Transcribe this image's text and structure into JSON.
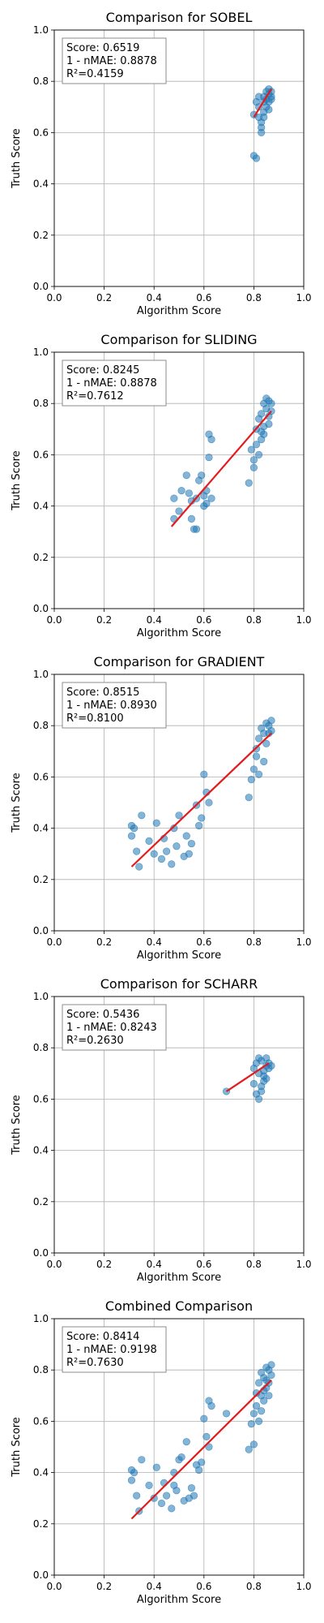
{
  "colors": {
    "point": "#1f77b4",
    "fit_line": "#e41a1c",
    "grid": "#b0b0b0"
  },
  "chart_data": [
    {
      "type": "scatter",
      "title": "Comparison for SOBEL",
      "xlabel": "Algorithm Score",
      "ylabel": "Truth Score",
      "xlim": [
        0,
        1
      ],
      "ylim": [
        0,
        1
      ],
      "xticks": [
        "0.0",
        "0.2",
        "0.4",
        "0.6",
        "0.8",
        "1.0"
      ],
      "yticks": [
        "0.0",
        "0.2",
        "0.4",
        "0.6",
        "0.8",
        "1.0"
      ],
      "grid": true,
      "stats_box": [
        "Score: 0.6519",
        "1 - nMAE: 0.8878",
        "R²=0.4159"
      ],
      "fit_line": [
        [
          0.8,
          0.66
        ],
        [
          0.87,
          0.77
        ]
      ],
      "points": [
        [
          0.8,
          0.51
        ],
        [
          0.81,
          0.5
        ],
        [
          0.8,
          0.67
        ],
        [
          0.81,
          0.72
        ],
        [
          0.82,
          0.7
        ],
        [
          0.82,
          0.66
        ],
        [
          0.83,
          0.62
        ],
        [
          0.83,
          0.6
        ],
        [
          0.84,
          0.72
        ],
        [
          0.84,
          0.74
        ],
        [
          0.85,
          0.76
        ],
        [
          0.85,
          0.73
        ],
        [
          0.86,
          0.75
        ],
        [
          0.86,
          0.77
        ],
        [
          0.87,
          0.74
        ],
        [
          0.87,
          0.76
        ],
        [
          0.84,
          0.68
        ],
        [
          0.83,
          0.64
        ],
        [
          0.82,
          0.74
        ],
        [
          0.86,
          0.72
        ],
        [
          0.85,
          0.7
        ],
        [
          0.84,
          0.66
        ],
        [
          0.87,
          0.73
        ],
        [
          0.86,
          0.69
        ]
      ]
    },
    {
      "type": "scatter",
      "title": "Comparison for SLIDING",
      "xlabel": "Algorithm Score",
      "ylabel": "Truth Score",
      "xlim": [
        0,
        1
      ],
      "ylim": [
        0,
        1
      ],
      "xticks": [
        "0.0",
        "0.2",
        "0.4",
        "0.6",
        "0.8",
        "1.0"
      ],
      "yticks": [
        "0.0",
        "0.2",
        "0.4",
        "0.6",
        "0.8",
        "1.0"
      ],
      "grid": true,
      "stats_box": [
        "Score: 0.8245",
        "1 - nMAE: 0.8878",
        "R²=0.7612"
      ],
      "fit_line": [
        [
          0.47,
          0.32
        ],
        [
          0.87,
          0.77
        ]
      ],
      "points": [
        [
          0.48,
          0.35
        ],
        [
          0.48,
          0.43
        ],
        [
          0.5,
          0.38
        ],
        [
          0.51,
          0.46
        ],
        [
          0.53,
          0.52
        ],
        [
          0.54,
          0.45
        ],
        [
          0.55,
          0.35
        ],
        [
          0.55,
          0.42
        ],
        [
          0.56,
          0.31
        ],
        [
          0.57,
          0.31
        ],
        [
          0.57,
          0.43
        ],
        [
          0.58,
          0.5
        ],
        [
          0.59,
          0.52
        ],
        [
          0.6,
          0.44
        ],
        [
          0.6,
          0.4
        ],
        [
          0.61,
          0.46
        ],
        [
          0.62,
          0.68
        ],
        [
          0.63,
          0.66
        ],
        [
          0.62,
          0.59
        ],
        [
          0.61,
          0.41
        ],
        [
          0.63,
          0.43
        ],
        [
          0.78,
          0.49
        ],
        [
          0.79,
          0.62
        ],
        [
          0.8,
          0.55
        ],
        [
          0.8,
          0.58
        ],
        [
          0.81,
          0.64
        ],
        [
          0.81,
          0.7
        ],
        [
          0.82,
          0.74
        ],
        [
          0.82,
          0.6
        ],
        [
          0.83,
          0.76
        ],
        [
          0.83,
          0.66
        ],
        [
          0.84,
          0.8
        ],
        [
          0.84,
          0.71
        ],
        [
          0.85,
          0.78
        ],
        [
          0.85,
          0.82
        ],
        [
          0.86,
          0.81
        ],
        [
          0.86,
          0.75
        ],
        [
          0.87,
          0.8
        ],
        [
          0.87,
          0.77
        ],
        [
          0.84,
          0.68
        ],
        [
          0.86,
          0.72
        ],
        [
          0.83,
          0.69
        ]
      ]
    },
    {
      "type": "scatter",
      "title": "Comparison for GRADIENT",
      "xlabel": "Algorithm Score",
      "ylabel": "Truth Score",
      "xlim": [
        0,
        1
      ],
      "ylim": [
        0,
        1
      ],
      "xticks": [
        "0.0",
        "0.2",
        "0.4",
        "0.6",
        "0.8",
        "1.0"
      ],
      "yticks": [
        "0.0",
        "0.2",
        "0.4",
        "0.6",
        "0.8",
        "1.0"
      ],
      "grid": true,
      "stats_box": [
        "Score: 0.8515",
        "1 - nMAE: 0.8930",
        "R²=0.8100"
      ],
      "fit_line": [
        [
          0.31,
          0.25
        ],
        [
          0.87,
          0.77
        ]
      ],
      "points": [
        [
          0.31,
          0.41
        ],
        [
          0.31,
          0.37
        ],
        [
          0.32,
          0.4
        ],
        [
          0.33,
          0.31
        ],
        [
          0.34,
          0.25
        ],
        [
          0.35,
          0.45
        ],
        [
          0.38,
          0.35
        ],
        [
          0.4,
          0.3
        ],
        [
          0.41,
          0.42
        ],
        [
          0.43,
          0.28
        ],
        [
          0.44,
          0.36
        ],
        [
          0.45,
          0.31
        ],
        [
          0.47,
          0.26
        ],
        [
          0.48,
          0.4
        ],
        [
          0.49,
          0.33
        ],
        [
          0.5,
          0.45
        ],
        [
          0.52,
          0.29
        ],
        [
          0.53,
          0.37
        ],
        [
          0.54,
          0.3
        ],
        [
          0.55,
          0.34
        ],
        [
          0.57,
          0.49
        ],
        [
          0.58,
          0.41
        ],
        [
          0.59,
          0.44
        ],
        [
          0.6,
          0.61
        ],
        [
          0.61,
          0.54
        ],
        [
          0.62,
          0.5
        ],
        [
          0.78,
          0.52
        ],
        [
          0.79,
          0.59
        ],
        [
          0.8,
          0.63
        ],
        [
          0.81,
          0.71
        ],
        [
          0.81,
          0.68
        ],
        [
          0.82,
          0.75
        ],
        [
          0.82,
          0.61
        ],
        [
          0.83,
          0.79
        ],
        [
          0.84,
          0.77
        ],
        [
          0.84,
          0.66
        ],
        [
          0.85,
          0.81
        ],
        [
          0.85,
          0.73
        ],
        [
          0.86,
          0.8
        ],
        [
          0.86,
          0.77
        ],
        [
          0.87,
          0.78
        ],
        [
          0.87,
          0.82
        ]
      ]
    },
    {
      "type": "scatter",
      "title": "Comparison for SCHARR",
      "xlabel": "Algorithm Score",
      "ylabel": "Truth Score",
      "xlim": [
        0,
        1
      ],
      "ylim": [
        0,
        1
      ],
      "xticks": [
        "0.0",
        "0.2",
        "0.4",
        "0.6",
        "0.8",
        "1.0"
      ],
      "yticks": [
        "0.0",
        "0.2",
        "0.4",
        "0.6",
        "0.8",
        "1.0"
      ],
      "grid": true,
      "stats_box": [
        "Score: 0.5436",
        "1 - nMAE: 0.8243",
        "R²=0.2630"
      ],
      "fit_line": [
        [
          0.69,
          0.63
        ],
        [
          0.86,
          0.74
        ]
      ],
      "points": [
        [
          0.69,
          0.63
        ],
        [
          0.8,
          0.66
        ],
        [
          0.8,
          0.72
        ],
        [
          0.81,
          0.74
        ],
        [
          0.81,
          0.62
        ],
        [
          0.82,
          0.7
        ],
        [
          0.82,
          0.6
        ],
        [
          0.83,
          0.65
        ],
        [
          0.83,
          0.75
        ],
        [
          0.84,
          0.71
        ],
        [
          0.84,
          0.67
        ],
        [
          0.85,
          0.73
        ],
        [
          0.85,
          0.76
        ],
        [
          0.86,
          0.72
        ],
        [
          0.86,
          0.74
        ],
        [
          0.87,
          0.73
        ],
        [
          0.84,
          0.69
        ],
        [
          0.83,
          0.63
        ],
        [
          0.82,
          0.76
        ],
        [
          0.85,
          0.68
        ]
      ]
    },
    {
      "type": "scatter",
      "title": "Combined Comparison",
      "xlabel": "Algorithm Score",
      "ylabel": "Truth Score",
      "xlim": [
        0,
        1
      ],
      "ylim": [
        0,
        1
      ],
      "xticks": [
        "0.0",
        "0.2",
        "0.4",
        "0.6",
        "0.8",
        "1.0"
      ],
      "yticks": [
        "0.0",
        "0.2",
        "0.4",
        "0.6",
        "0.8",
        "1.0"
      ],
      "grid": true,
      "stats_box": [
        "Score: 0.8414",
        "1 - nMAE: 0.9198",
        "R²=0.7630"
      ],
      "fit_line": [
        [
          0.31,
          0.22
        ],
        [
          0.87,
          0.76
        ]
      ],
      "points": [
        [
          0.31,
          0.41
        ],
        [
          0.31,
          0.37
        ],
        [
          0.32,
          0.4
        ],
        [
          0.33,
          0.31
        ],
        [
          0.34,
          0.25
        ],
        [
          0.35,
          0.45
        ],
        [
          0.38,
          0.35
        ],
        [
          0.4,
          0.3
        ],
        [
          0.41,
          0.42
        ],
        [
          0.43,
          0.28
        ],
        [
          0.44,
          0.36
        ],
        [
          0.45,
          0.31
        ],
        [
          0.47,
          0.26
        ],
        [
          0.48,
          0.4
        ],
        [
          0.48,
          0.35
        ],
        [
          0.49,
          0.33
        ],
        [
          0.5,
          0.45
        ],
        [
          0.51,
          0.46
        ],
        [
          0.52,
          0.29
        ],
        [
          0.53,
          0.52
        ],
        [
          0.54,
          0.3
        ],
        [
          0.55,
          0.34
        ],
        [
          0.56,
          0.31
        ],
        [
          0.57,
          0.43
        ],
        [
          0.58,
          0.41
        ],
        [
          0.59,
          0.44
        ],
        [
          0.6,
          0.61
        ],
        [
          0.61,
          0.54
        ],
        [
          0.62,
          0.68
        ],
        [
          0.63,
          0.66
        ],
        [
          0.62,
          0.5
        ],
        [
          0.69,
          0.63
        ],
        [
          0.78,
          0.49
        ],
        [
          0.79,
          0.59
        ],
        [
          0.8,
          0.51
        ],
        [
          0.8,
          0.63
        ],
        [
          0.81,
          0.71
        ],
        [
          0.81,
          0.66
        ],
        [
          0.82,
          0.75
        ],
        [
          0.82,
          0.6
        ],
        [
          0.83,
          0.79
        ],
        [
          0.83,
          0.64
        ],
        [
          0.84,
          0.77
        ],
        [
          0.84,
          0.68
        ],
        [
          0.85,
          0.81
        ],
        [
          0.85,
          0.73
        ],
        [
          0.86,
          0.8
        ],
        [
          0.86,
          0.75
        ],
        [
          0.87,
          0.78
        ],
        [
          0.87,
          0.82
        ],
        [
          0.84,
          0.72
        ],
        [
          0.86,
          0.7
        ],
        [
          0.85,
          0.76
        ],
        [
          0.83,
          0.7
        ]
      ]
    }
  ]
}
